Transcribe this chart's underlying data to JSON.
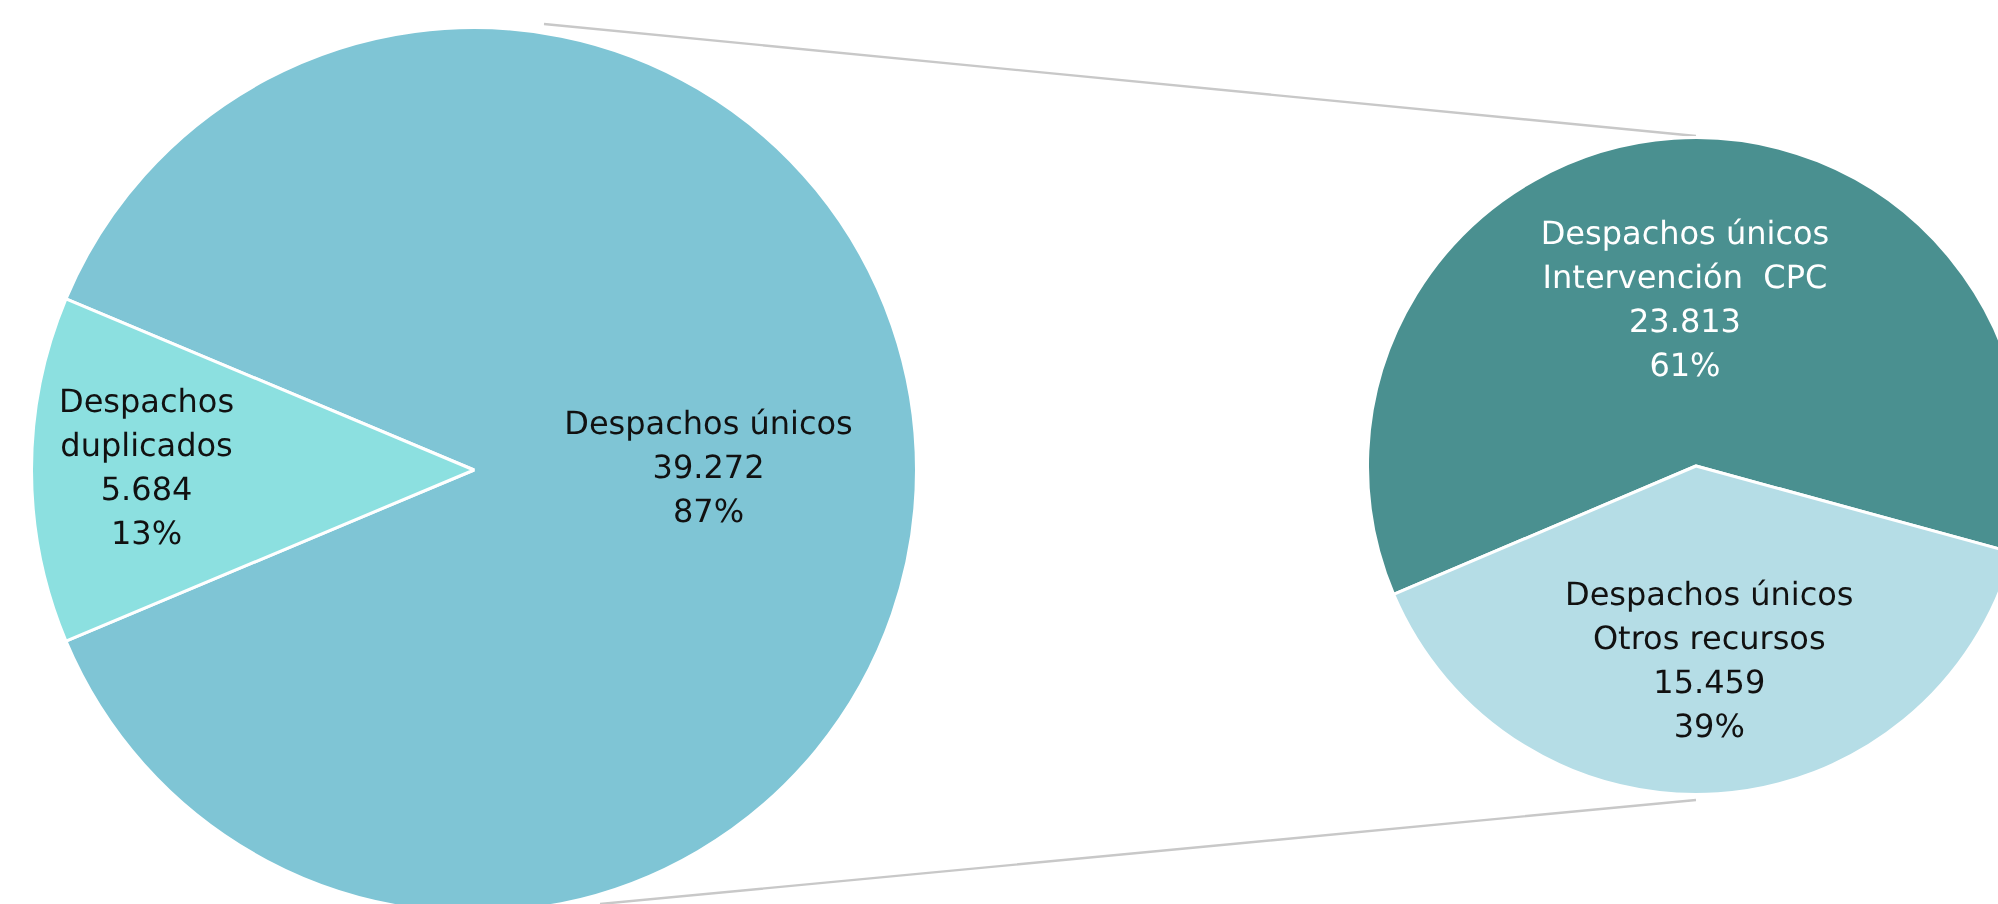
{
  "chart_data": [
    {
      "type": "pie",
      "categories": [
        "Despachos únicos",
        "Despachos\nduplicados"
      ],
      "values": [
        39272,
        5684
      ],
      "colors": [
        "#7fc5d5",
        "#8ce0e0"
      ],
      "value_labels": [
        "39.272\n87%",
        "5.684\n13%"
      ],
      "legend": false
    },
    {
      "type": "pie",
      "categories": [
        "Despachos únicos\nIntervención  CPC",
        "Despachos únicos\nOtros recursos"
      ],
      "values": [
        23813,
        15459
      ],
      "colors": [
        "#4a9090",
        "#b5dde6"
      ],
      "value_labels": [
        "23.813\n61%",
        "15.459\n39%"
      ],
      "legend": false
    }
  ]
}
